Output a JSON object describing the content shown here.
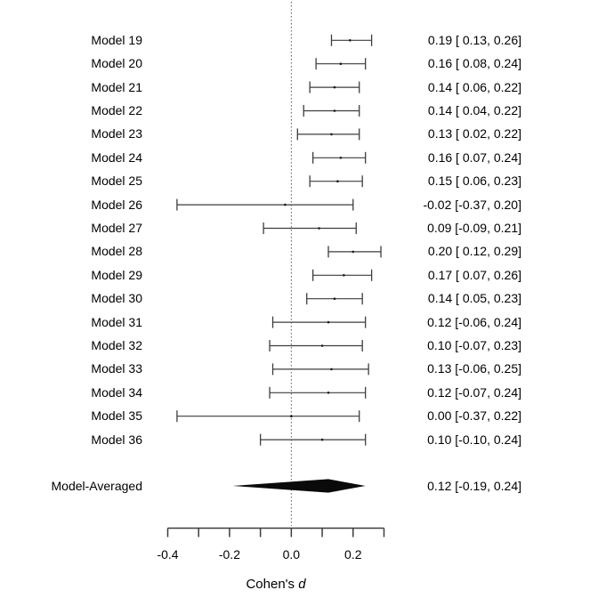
{
  "figure": {
    "background": "#ffffff",
    "text_color": "#000000",
    "line_color": "#3d3d3d",
    "diamond_color": "#0a0a0a",
    "reference_line_color": "#5a5a5a"
  },
  "chart_data": {
    "type": "forest",
    "title": "",
    "xlabel": "Cohen's d",
    "xlabel_prefix": "Cohen's",
    "xlabel_symbol": "d",
    "x_axis": {
      "range": [
        -0.4,
        0.3
      ],
      "ticks": [
        -0.4,
        -0.3,
        -0.2,
        -0.1,
        0.0,
        0.1,
        0.2,
        0.3
      ],
      "tick_labels": [
        {
          "value": -0.4,
          "label": "-0.4"
        },
        {
          "value": -0.2,
          "label": "-0.2"
        },
        {
          "value": 0.0,
          "label": "0.0"
        },
        {
          "value": 0.2,
          "label": "0.2"
        }
      ],
      "reference_line": 0.0,
      "grid": false
    },
    "rows": [
      {
        "label": "Model 19",
        "est": 0.19,
        "lower": 0.13,
        "upper": 0.26,
        "annotation": "0.19 [ 0.13, 0.26]"
      },
      {
        "label": "Model 20",
        "est": 0.16,
        "lower": 0.08,
        "upper": 0.24,
        "annotation": "0.16 [ 0.08, 0.24]"
      },
      {
        "label": "Model 21",
        "est": 0.14,
        "lower": 0.06,
        "upper": 0.22,
        "annotation": "0.14 [ 0.06, 0.22]"
      },
      {
        "label": "Model 22",
        "est": 0.14,
        "lower": 0.04,
        "upper": 0.22,
        "annotation": "0.14 [ 0.04, 0.22]"
      },
      {
        "label": "Model 23",
        "est": 0.13,
        "lower": 0.02,
        "upper": 0.22,
        "annotation": "0.13 [ 0.02, 0.22]"
      },
      {
        "label": "Model 24",
        "est": 0.16,
        "lower": 0.07,
        "upper": 0.24,
        "annotation": "0.16 [ 0.07, 0.24]"
      },
      {
        "label": "Model 25",
        "est": 0.15,
        "lower": 0.06,
        "upper": 0.23,
        "annotation": "0.15 [ 0.06, 0.23]"
      },
      {
        "label": "Model 26",
        "est": -0.02,
        "lower": -0.37,
        "upper": 0.2,
        "annotation": "-0.02 [-0.37, 0.20]"
      },
      {
        "label": "Model 27",
        "est": 0.09,
        "lower": -0.09,
        "upper": 0.21,
        "annotation": "0.09 [-0.09, 0.21]"
      },
      {
        "label": "Model 28",
        "est": 0.2,
        "lower": 0.12,
        "upper": 0.29,
        "annotation": "0.20 [ 0.12, 0.29]"
      },
      {
        "label": "Model 29",
        "est": 0.17,
        "lower": 0.07,
        "upper": 0.26,
        "annotation": "0.17 [ 0.07, 0.26]"
      },
      {
        "label": "Model 30",
        "est": 0.14,
        "lower": 0.05,
        "upper": 0.23,
        "annotation": "0.14 [ 0.05, 0.23]"
      },
      {
        "label": "Model 31",
        "est": 0.12,
        "lower": -0.06,
        "upper": 0.24,
        "annotation": "0.12 [-0.06, 0.24]"
      },
      {
        "label": "Model 32",
        "est": 0.1,
        "lower": -0.07,
        "upper": 0.23,
        "annotation": "0.10 [-0.07, 0.23]"
      },
      {
        "label": "Model 33",
        "est": 0.13,
        "lower": -0.06,
        "upper": 0.25,
        "annotation": "0.13 [-0.06, 0.25]"
      },
      {
        "label": "Model 34",
        "est": 0.12,
        "lower": -0.07,
        "upper": 0.24,
        "annotation": "0.12 [-0.07, 0.24]"
      },
      {
        "label": "Model 35",
        "est": 0.0,
        "lower": -0.37,
        "upper": 0.22,
        "annotation": "0.00 [-0.37, 0.22]"
      },
      {
        "label": "Model 36",
        "est": 0.1,
        "lower": -0.1,
        "upper": 0.24,
        "annotation": "0.10 [-0.10, 0.24]"
      }
    ],
    "summary": {
      "label": "Model-Averaged",
      "est": 0.12,
      "lower": -0.19,
      "upper": 0.24,
      "annotation": "0.12 [-0.19, 0.24]"
    }
  }
}
